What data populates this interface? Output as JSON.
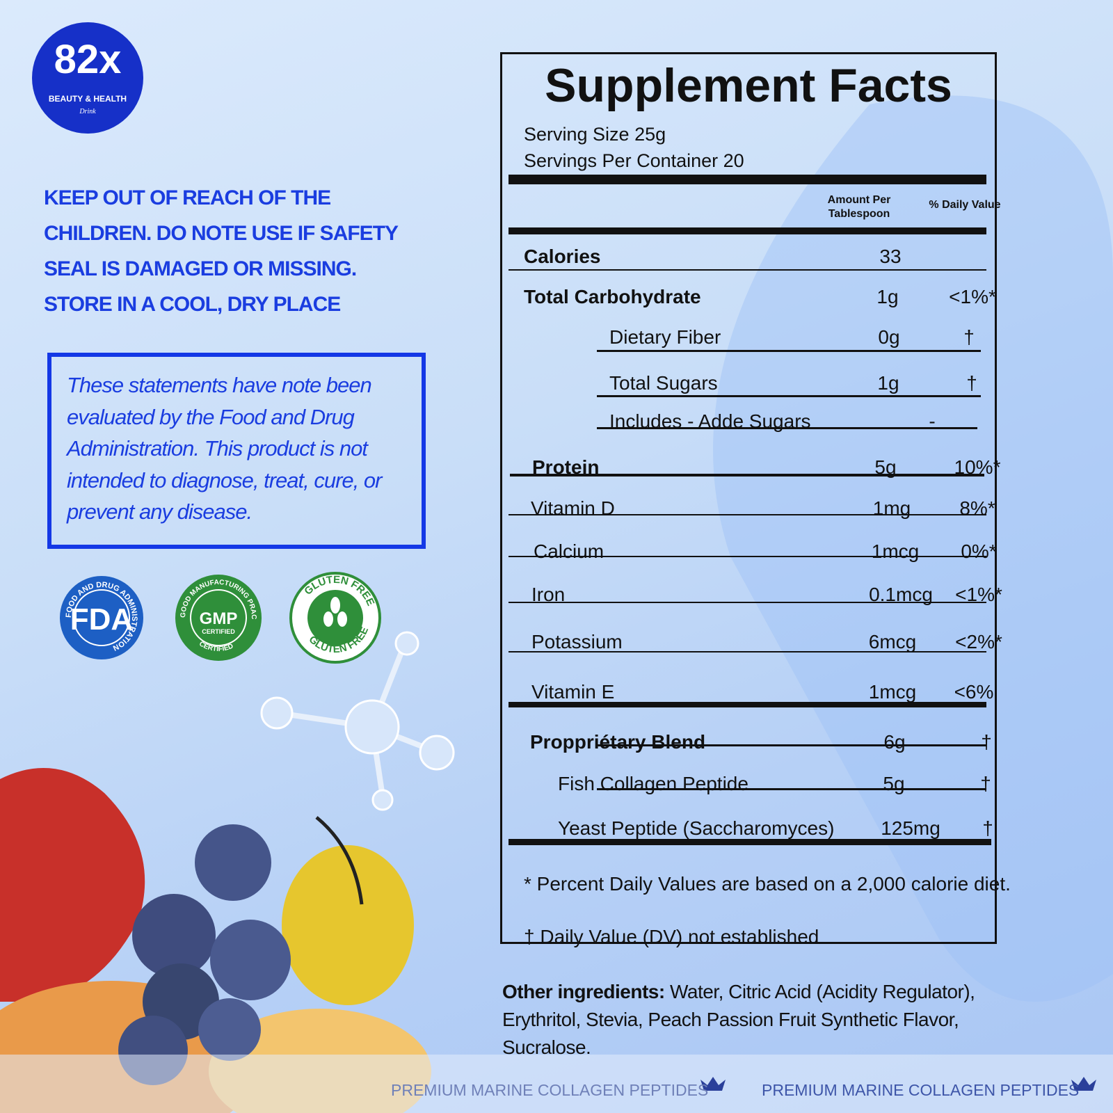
{
  "logo": {
    "mark": "82x",
    "tagline": "BEAUTY & HEALTH",
    "script": "Drink"
  },
  "warning": [
    "KEEP OUT OF REACH OF THE",
    "CHILDREN. DO NOTE USE IF SAFETY",
    "SEAL IS DAMAGED OR MISSING.",
    "STORE IN A COOL, DRY PLACE"
  ],
  "disclaimer": "These statements have note been evaluated by the Food and Drug Administration. This product is not intended to diagnose, treat, cure, or prevent any disease.",
  "badges": [
    {
      "label": "FDA",
      "ring": "FOOD AND DRUG ADMINISTRATION"
    },
    {
      "label": "GMP",
      "sub": "CERTIFIED",
      "ring": "GOOD MANUFACTURING PRACTICE",
      "ring_bottom": "CERTIFIED"
    },
    {
      "ring": "GLUTEN FREE",
      "ring_bottom": "GLUTEN FREE"
    }
  ],
  "facts": {
    "title": "Supplement Facts",
    "serving_size": "Serving Size 25g",
    "servings_per_container": "Servings Per Container 20",
    "column_headers": [
      "Amount Per Tablespoon",
      "% Daily Value"
    ],
    "rows": [
      {
        "name": "Calories",
        "amount": "33"
      },
      {
        "name": "Total Carbohydrate",
        "amount": "1g",
        "dv": "<1%*"
      },
      {
        "name": "Dietary Fiber",
        "amount": "0g",
        "dv": "†"
      },
      {
        "name": "Total Sugars",
        "amount": "1g",
        "dv": "†"
      },
      {
        "name": "Includes - Adde Sugars",
        "dv": "-"
      },
      {
        "name": "Protein",
        "amount": "5g",
        "dv": "10%*"
      },
      {
        "name": "Vitamin D",
        "amount": "1mg",
        "dv": "8%*"
      },
      {
        "name": "Calcium",
        "amount": "1mcg",
        "dv": "0%*"
      },
      {
        "name": "Iron",
        "amount": "0.1mcg",
        "dv": "<1%*"
      },
      {
        "name": "Potassium",
        "amount": "6mcg",
        "dv": "<2%*"
      },
      {
        "name": "Vitamin E",
        "amount": "1mcg",
        "dv": "<6%"
      },
      {
        "name": "Proppriétary Blend",
        "amount": "6g",
        "dv": "†"
      },
      {
        "name": "Fish Collagen Peptide",
        "amount": "5g",
        "dv": "†"
      },
      {
        "name": "Yeast Peptide (Saccharomyces)",
        "amount": "125mg",
        "dv": "†"
      }
    ],
    "footnotes": [
      "* Percent Daily Values are based on a 2,000 calorie diet.",
      "† Daily Value (DV) not established"
    ]
  },
  "other_ingredients": {
    "label": "Other ingredients:",
    "text": "Water, Citric Acid (Acidity Regulator), Erythritol, Stevia, Peach Passion Fruit Synthetic Flavor, Sucralose."
  },
  "banner": [
    "PREMIUM MARINE COLLAGEN PEPTIDES",
    "PREMIUM MARINE COLLAGEN PEPTIDES"
  ]
}
